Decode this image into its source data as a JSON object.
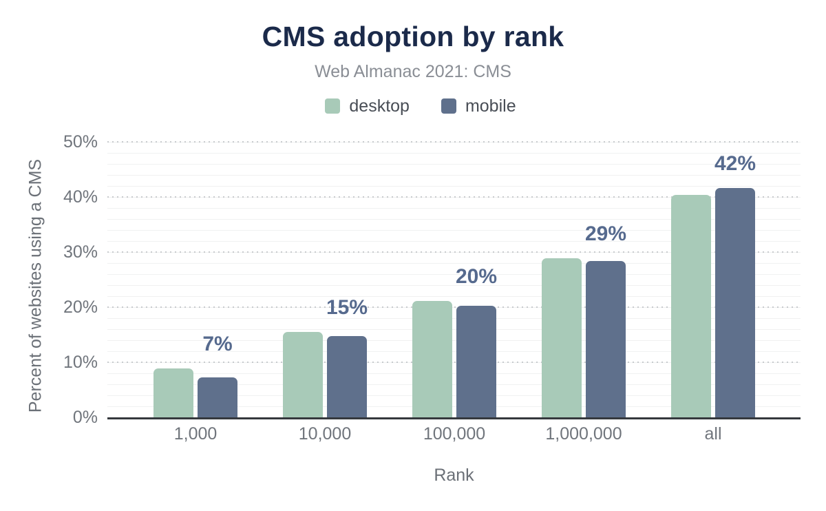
{
  "header": {
    "title": "CMS adoption by rank",
    "subtitle": "Web Almanac 2021: CMS"
  },
  "colors": {
    "title": "#1b2a4a",
    "subtitle": "#8a8e95",
    "legend-text": "#484d55",
    "axis-text": "#70757c",
    "axis-title-text": "#6b7077",
    "axis-line": "#35383d",
    "grid-major": "#c7cacd",
    "grid-minor": "#f0f1f1"
  },
  "chart_data": {
    "type": "bar",
    "title": "CMS adoption by rank",
    "subtitle": "Web Almanac 2021: CMS",
    "categories": [
      "1,000",
      "10,000",
      "100,000",
      "1,000,000",
      "all"
    ],
    "series": [
      {
        "name": "desktop",
        "color": "#a8cab8",
        "values": [
          8.9,
          15.5,
          21.1,
          28.9,
          40.4
        ]
      },
      {
        "name": "mobile",
        "color": "#5f708c",
        "values": [
          7.3,
          14.8,
          20.3,
          28.4,
          41.6
        ]
      }
    ],
    "bar_labels": [
      "7%",
      "15%",
      "20%",
      "29%",
      "42%"
    ],
    "bar_label_color": "#566a8e",
    "xlabel": "Rank",
    "ylabel": "Percent of websites using a CMS",
    "ylim": [
      0,
      50
    ],
    "y_ticks": [
      {
        "value": 0,
        "label": "0%"
      },
      {
        "value": 10,
        "label": "10%"
      },
      {
        "value": 20,
        "label": "20%"
      },
      {
        "value": 30,
        "label": "30%"
      },
      {
        "value": 40,
        "label": "40%"
      },
      {
        "value": 50,
        "label": "50%"
      }
    ],
    "grid": {
      "major": "dotted every 10%",
      "minor_step_percent": 2
    },
    "legend_position": "top"
  }
}
